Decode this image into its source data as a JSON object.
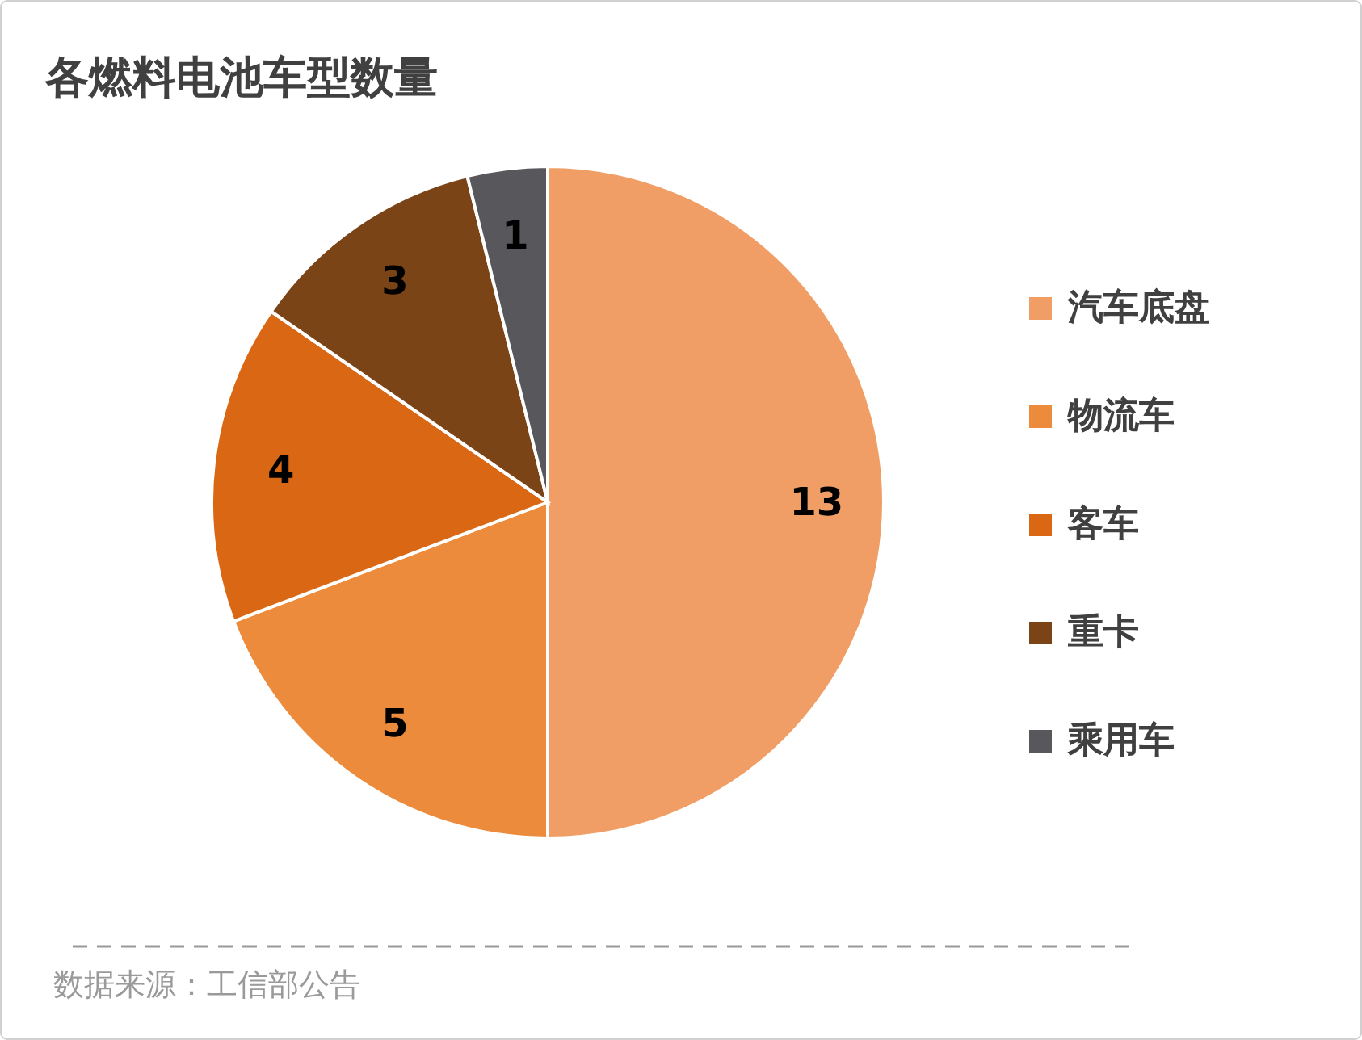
{
  "chart_data": {
    "type": "pie",
    "title": "各燃料电池车型数量",
    "categories": [
      "汽车底盘",
      "物流车",
      "客车",
      "重卡",
      "乘用车"
    ],
    "values": [
      13,
      5,
      4,
      3,
      1
    ],
    "colors": [
      "#f09e65",
      "#ec8b3c",
      "#da6713",
      "#7a4416",
      "#58575b"
    ],
    "data_labels": true,
    "legend": "right",
    "annotations": [
      "数据来源：工信部公告"
    ]
  }
}
